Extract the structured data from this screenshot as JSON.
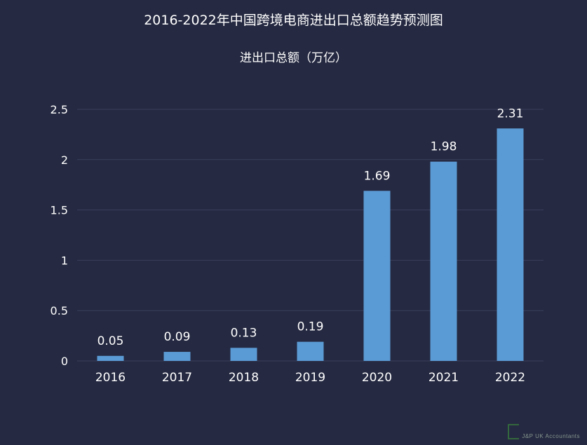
{
  "title": "2016-2022年中国跨境电商进出口总额趋势预测图",
  "subtitle": "进出口总额（万亿）",
  "colors": {
    "background": "#252941",
    "bar": "#5b9bd5",
    "grid": "#3a3f5c",
    "text": "#ffffff"
  },
  "watermark": {
    "text": "J&P UK Accountants"
  },
  "chart_data": {
    "type": "bar",
    "title": "2016-2022年中国跨境电商进出口总额趋势预测图",
    "ylabel": "进出口总额（万亿）",
    "xlabel": "",
    "categories": [
      "2016",
      "2017",
      "2018",
      "2019",
      "2020",
      "2021",
      "2022"
    ],
    "values": [
      0.05,
      0.09,
      0.13,
      0.19,
      1.69,
      1.98,
      2.31
    ],
    "value_labels": [
      "0.05",
      "0.09",
      "0.13",
      "0.19",
      "1.69",
      "1.98",
      "2.31"
    ],
    "ylim": [
      0,
      2.5
    ],
    "yticks": [
      0,
      0.5,
      1,
      1.5,
      2,
      2.5
    ],
    "ytick_labels": [
      "0",
      "0.5",
      "1",
      "1.5",
      "2",
      "2.5"
    ],
    "grid": true,
    "legend": "none"
  }
}
